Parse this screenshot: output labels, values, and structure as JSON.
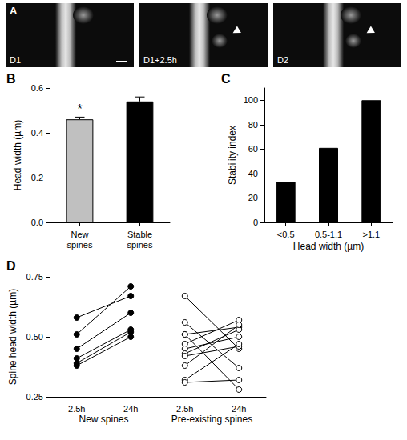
{
  "images": {
    "panel": "A",
    "type": "image",
    "labels": [
      "D1",
      "D1+2.5h",
      "D2"
    ]
  },
  "chart_data": [
    {
      "panel": "B",
      "type": "bar",
      "categories": [
        "New spines",
        "Stable spines"
      ],
      "values": [
        0.46,
        0.54
      ],
      "errors": [
        0.01,
        0.02
      ],
      "colors": [
        "#c0c0c0",
        "#000000"
      ],
      "y_label": "Head width (µm)",
      "ylim": [
        0,
        0.6
      ],
      "yticks": [
        {
          "value": 0,
          "label": "0.0"
        },
        0.2,
        0.4,
        0.6
      ],
      "annotations": [
        {
          "category": "New spines",
          "text": "*"
        }
      ]
    },
    {
      "panel": "C",
      "type": "bar",
      "categories": [
        "<0.5",
        "0.5-1.1",
        ">1.1"
      ],
      "values": [
        33,
        61,
        100
      ],
      "color": "#000000",
      "x_label": "Head width (µm)",
      "y_label": "Stability index",
      "ylim": [
        0,
        110
      ],
      "yticks": [
        0,
        20,
        40,
        60,
        80,
        100
      ]
    },
    {
      "panel": "D",
      "type": "line",
      "categories": [
        "2.5h",
        "24h",
        "2.5h",
        "24h"
      ],
      "color": "#000000",
      "y_label": "Spine head width (µm)",
      "ylim": [
        0.25,
        0.75
      ],
      "yticks": [
        0.25,
        {
          "value": 0.5,
          "label": "0.50"
        },
        0.75
      ],
      "groups": [
        {
          "name": "New spines",
          "marker": "filled_circle",
          "pairs": [
            [
              0.58,
              0.67
            ],
            [
              0.51,
              0.71
            ],
            [
              0.45,
              0.6
            ],
            [
              0.41,
              0.53
            ],
            [
              0.39,
              0.52
            ],
            [
              0.38,
              0.5
            ]
          ]
        },
        {
          "name": "Pre-existing spines",
          "marker": "open_circle",
          "pairs": [
            [
              0.67,
              0.45
            ],
            [
              0.56,
              0.37
            ],
            [
              0.51,
              0.54
            ],
            [
              0.51,
              0.28
            ],
            [
              0.47,
              0.57
            ],
            [
              0.45,
              0.5
            ],
            [
              0.43,
              0.53
            ],
            [
              0.42,
              0.46
            ],
            [
              0.38,
              0.55
            ],
            [
              0.32,
              0.47
            ],
            [
              0.31,
              0.32
            ]
          ]
        }
      ]
    }
  ]
}
